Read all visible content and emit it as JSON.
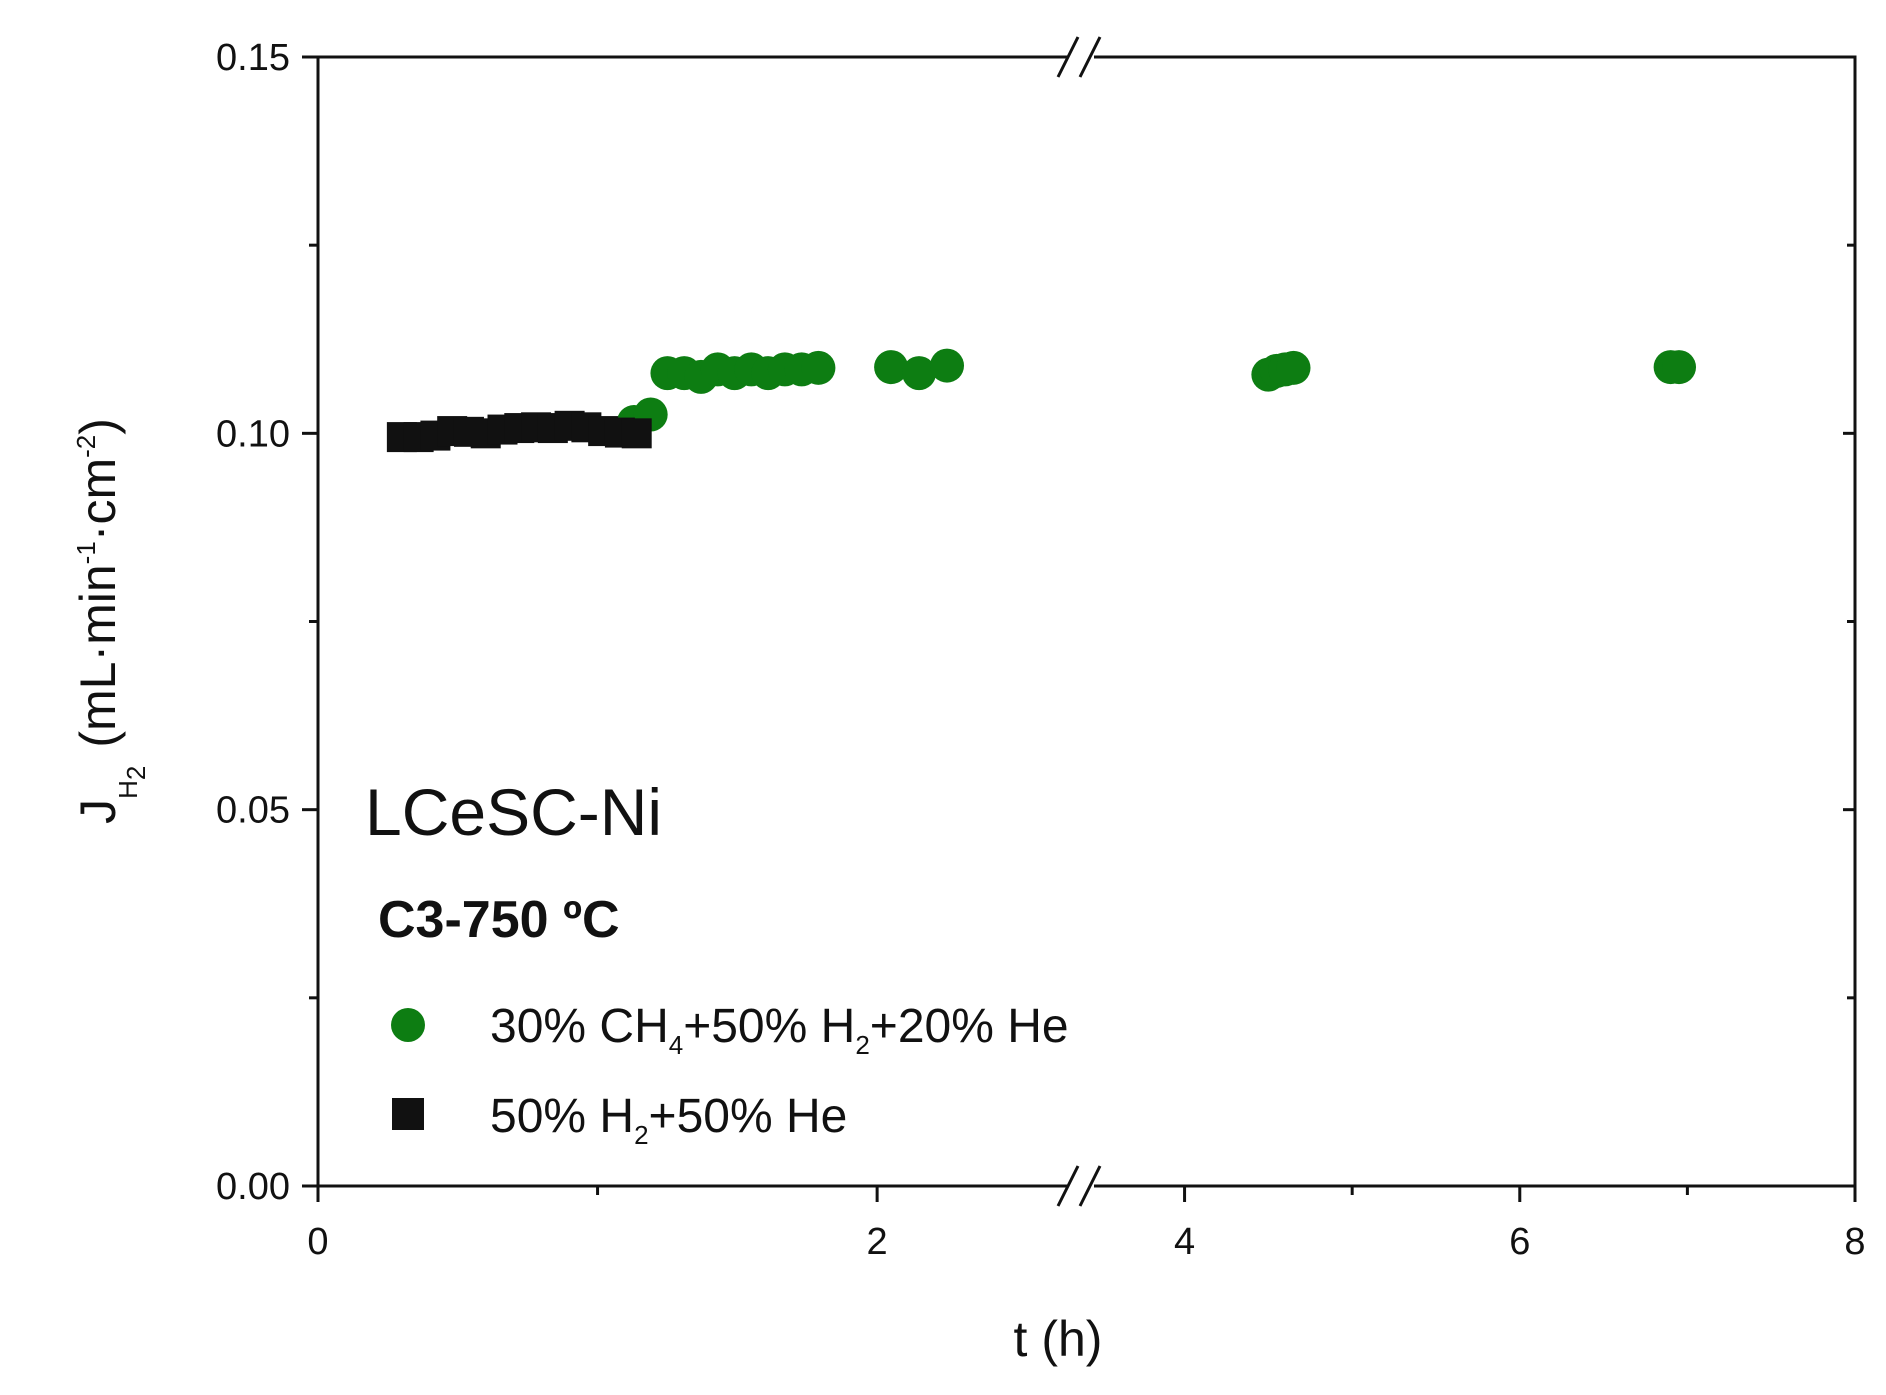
{
  "chart_data": {
    "type": "scatter",
    "x_axis": {
      "label": "t (h)",
      "broken": true,
      "left_segment": {
        "range": [
          0,
          2.74
        ],
        "ticks": [
          0,
          2
        ]
      },
      "right_segment": {
        "range": [
          3.4,
          8
        ],
        "ticks": [
          4,
          6,
          8
        ]
      },
      "tick_labels": [
        "0",
        "2",
        "4",
        "6",
        "8"
      ]
    },
    "y_axis": {
      "label_main": "J",
      "label_sub": "H",
      "label_subsub": "2",
      "label_rest": "(mL·min",
      "label_exp1": "-1",
      "label_mid": "·cm",
      "label_exp2": "-2",
      "label_close": ")",
      "range": [
        0,
        0.15
      ],
      "ticks": [
        0,
        0.05,
        0.1,
        0.15
      ],
      "tick_labels": [
        "0.00",
        "0.05",
        "0.10",
        "0.15"
      ]
    },
    "annotations": {
      "material": "LCeSC-Ni",
      "condition": "C3-750 ºC"
    },
    "series": [
      {
        "name": "30% CH4+50% H2+20% He",
        "legend_parts": [
          "30% CH",
          "4",
          "+50% H",
          "2",
          "+20% He"
        ],
        "marker": "circle",
        "color": "#0d7d12",
        "x": [
          1.13,
          1.19,
          1.25,
          1.31,
          1.37,
          1.43,
          1.49,
          1.55,
          1.61,
          1.67,
          1.73,
          1.79,
          2.05,
          2.15,
          2.25,
          4.5,
          4.55,
          4.6,
          4.65,
          6.9,
          6.95
        ],
        "y": [
          0.1015,
          0.1025,
          0.108,
          0.108,
          0.1075,
          0.1085,
          0.108,
          0.1085,
          0.108,
          0.1085,
          0.1085,
          0.1087,
          0.1088,
          0.108,
          0.109,
          0.1078,
          0.1083,
          0.1085,
          0.1087,
          0.1088,
          0.1088
        ]
      },
      {
        "name": "50% H2+50% He",
        "legend_parts": [
          "50% H",
          "2",
          "+50% He"
        ],
        "marker": "square",
        "color": "#111111",
        "x": [
          0.3,
          0.36,
          0.42,
          0.48,
          0.54,
          0.6,
          0.66,
          0.72,
          0.78,
          0.84,
          0.9,
          0.96,
          1.02,
          1.08,
          1.14
        ],
        "y": [
          0.0995,
          0.0995,
          0.0997,
          0.1003,
          0.1002,
          0.1,
          0.1005,
          0.1007,
          0.1008,
          0.1007,
          0.101,
          0.1008,
          0.1003,
          0.1001,
          0.1
        ]
      }
    ]
  }
}
